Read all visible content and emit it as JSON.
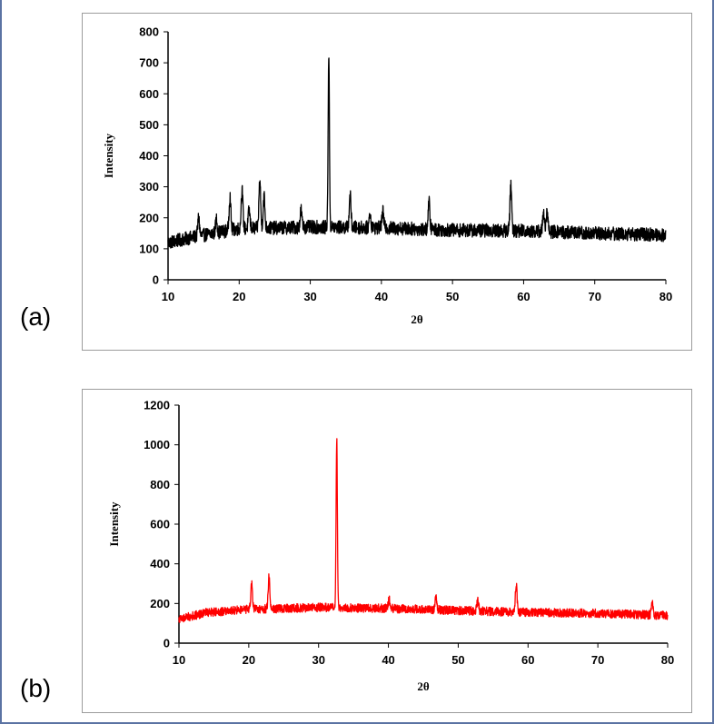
{
  "panels": {
    "a": {
      "label": "(a)"
    },
    "b": {
      "label": "(b)"
    }
  },
  "chart_data": [
    {
      "type": "line",
      "panel": "(a)",
      "xlabel": "2θ",
      "ylabel": "Intensity",
      "xlim": [
        10,
        80
      ],
      "ylim": [
        0,
        800
      ],
      "xticks": [
        10,
        20,
        30,
        40,
        50,
        60,
        70,
        80
      ],
      "yticks": [
        0,
        100,
        200,
        300,
        400,
        500,
        600,
        700,
        800
      ],
      "grid": false,
      "color": "#000000",
      "baseline": [
        [
          10,
          120
        ],
        [
          14,
          140
        ],
        [
          20,
          165
        ],
        [
          30,
          170
        ],
        [
          40,
          168
        ],
        [
          50,
          160
        ],
        [
          60,
          158
        ],
        [
          70,
          150
        ],
        [
          80,
          145
        ]
      ],
      "noise": 22,
      "peaks": [
        {
          "x": 14.3,
          "y": 200
        },
        {
          "x": 16.8,
          "y": 195
        },
        {
          "x": 18.7,
          "y": 270
        },
        {
          "x": 20.4,
          "y": 292
        },
        {
          "x": 21.4,
          "y": 225
        },
        {
          "x": 22.9,
          "y": 320
        },
        {
          "x": 23.5,
          "y": 270
        },
        {
          "x": 28.7,
          "y": 225
        },
        {
          "x": 32.6,
          "y": 730
        },
        {
          "x": 35.6,
          "y": 275
        },
        {
          "x": 38.4,
          "y": 215
        },
        {
          "x": 40.2,
          "y": 220
        },
        {
          "x": 46.7,
          "y": 250
        },
        {
          "x": 58.2,
          "y": 308
        },
        {
          "x": 62.8,
          "y": 222
        },
        {
          "x": 63.3,
          "y": 215
        }
      ]
    },
    {
      "type": "line",
      "panel": "(b)",
      "xlabel": "2θ",
      "ylabel": "Intensity",
      "xlim": [
        10,
        80
      ],
      "ylim": [
        0,
        1200
      ],
      "xticks": [
        10,
        20,
        30,
        40,
        50,
        60,
        70,
        80
      ],
      "yticks": [
        0,
        200,
        400,
        600,
        800,
        1000,
        1200
      ],
      "grid": false,
      "color": "#ff0000",
      "baseline": [
        [
          10,
          120
        ],
        [
          14,
          155
        ],
        [
          20,
          170
        ],
        [
          30,
          180
        ],
        [
          40,
          175
        ],
        [
          50,
          165
        ],
        [
          60,
          155
        ],
        [
          70,
          150
        ],
        [
          80,
          140
        ]
      ],
      "noise": 22,
      "peaks": [
        {
          "x": 20.4,
          "y": 300
        },
        {
          "x": 22.9,
          "y": 335
        },
        {
          "x": 32.6,
          "y": 1030
        },
        {
          "x": 40.1,
          "y": 220
        },
        {
          "x": 46.8,
          "y": 240
        },
        {
          "x": 52.8,
          "y": 215
        },
        {
          "x": 58.3,
          "y": 300
        },
        {
          "x": 77.8,
          "y": 195
        }
      ]
    }
  ]
}
